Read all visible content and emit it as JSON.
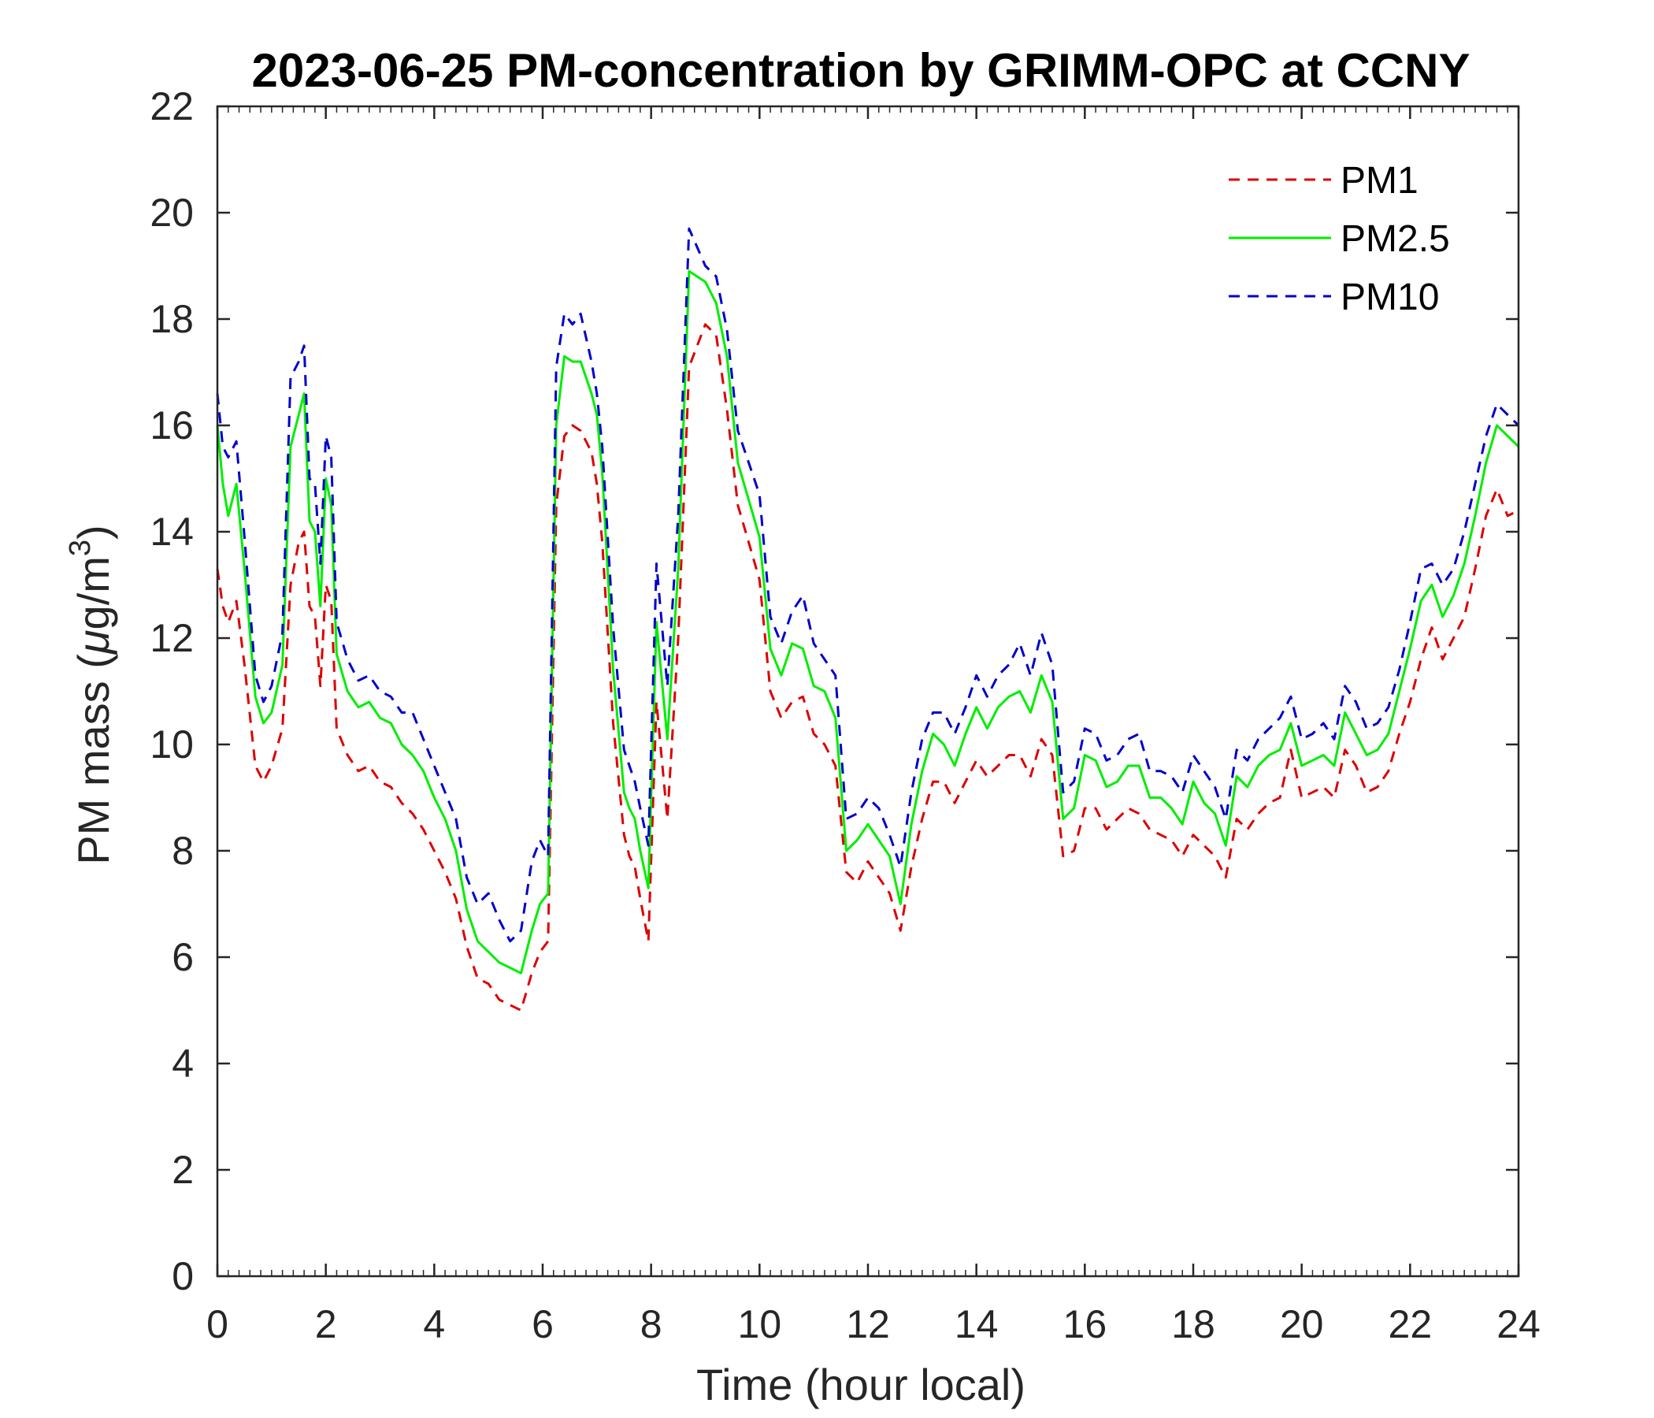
{
  "chart_data": {
    "type": "line",
    "title": "2023-06-25 PM-concentration by GRIMM-OPC at CCNY",
    "xlabel": "Time (hour local)",
    "ylabel_prefix": "PM mass (",
    "ylabel_mu": "μ",
    "ylabel_unit": "g/m",
    "ylabel_sup": "3",
    "ylabel_suffix": ")",
    "xlim": [
      0,
      24
    ],
    "ylim": [
      0,
      22
    ],
    "xticks": [
      0,
      2,
      4,
      6,
      8,
      10,
      12,
      14,
      16,
      18,
      20,
      22,
      24
    ],
    "yticks": [
      0,
      2,
      4,
      6,
      8,
      10,
      12,
      14,
      16,
      18,
      20,
      22
    ],
    "grid": false,
    "legend_position": "top-right",
    "series": [
      {
        "name": "PM1",
        "color": "#dd0000",
        "dash": "dashed",
        "x": [
          0,
          0.1,
          0.2,
          0.35,
          0.5,
          0.7,
          0.85,
          1.0,
          1.2,
          1.35,
          1.5,
          1.6,
          1.7,
          1.8,
          1.9,
          2.0,
          2.1,
          2.2,
          2.4,
          2.6,
          2.8,
          3.0,
          3.2,
          3.4,
          3.6,
          3.8,
          4.0,
          4.2,
          4.4,
          4.6,
          4.8,
          5.0,
          5.2,
          5.4,
          5.6,
          5.8,
          5.95,
          6.1,
          6.25,
          6.4,
          6.55,
          6.7,
          6.9,
          7.0,
          7.1,
          7.3,
          7.5,
          7.6,
          7.7,
          7.8,
          7.95,
          8.1,
          8.3,
          8.5,
          8.7,
          9.0,
          9.2,
          9.4,
          9.6,
          9.8,
          10.0,
          10.2,
          10.4,
          10.6,
          10.8,
          11.0,
          11.2,
          11.4,
          11.6,
          11.8,
          12.0,
          12.2,
          12.4,
          12.6,
          12.8,
          13.0,
          13.2,
          13.4,
          13.6,
          13.8,
          14.0,
          14.2,
          14.4,
          14.6,
          14.8,
          15.0,
          15.2,
          15.4,
          15.6,
          15.8,
          16.0,
          16.2,
          16.4,
          16.6,
          16.8,
          17.0,
          17.2,
          17.4,
          17.6,
          17.8,
          18.0,
          18.2,
          18.4,
          18.6,
          18.8,
          19.0,
          19.2,
          19.4,
          19.6,
          19.8,
          20.0,
          20.2,
          20.4,
          20.6,
          20.8,
          21.0,
          21.2,
          21.4,
          21.6,
          21.8,
          22.0,
          22.2,
          22.4,
          22.6,
          22.8,
          23.0,
          23.2,
          23.4,
          23.6,
          23.8,
          24.0
        ],
        "y": [
          13.3,
          12.6,
          12.3,
          12.7,
          11.5,
          9.6,
          9.3,
          9.6,
          10.3,
          13.0,
          13.8,
          14.0,
          12.6,
          12.4,
          11.1,
          13.0,
          12.7,
          10.3,
          9.8,
          9.5,
          9.6,
          9.3,
          9.2,
          8.9,
          8.7,
          8.4,
          8.0,
          7.6,
          7.1,
          6.2,
          5.6,
          5.5,
          5.2,
          5.1,
          5.0,
          5.7,
          6.1,
          6.3,
          14.5,
          15.8,
          16.0,
          15.9,
          15.5,
          14.9,
          13.8,
          10.4,
          8.3,
          7.9,
          7.7,
          7.1,
          6.3,
          10.8,
          8.6,
          12.0,
          17.1,
          17.9,
          17.7,
          16.3,
          14.5,
          13.8,
          13.1,
          11.0,
          10.5,
          10.8,
          10.9,
          10.2,
          10.0,
          9.6,
          7.6,
          7.4,
          7.8,
          7.5,
          7.2,
          6.5,
          7.7,
          8.6,
          9.3,
          9.3,
          8.9,
          9.3,
          9.7,
          9.4,
          9.6,
          9.8,
          9.8,
          9.4,
          10.1,
          9.8,
          7.9,
          8.0,
          8.8,
          8.8,
          8.4,
          8.6,
          8.8,
          8.7,
          8.4,
          8.3,
          8.2,
          7.9,
          8.3,
          8.1,
          7.9,
          7.5,
          8.6,
          8.4,
          8.7,
          8.9,
          9.0,
          9.9,
          9.0,
          9.1,
          9.2,
          9.0,
          9.9,
          9.6,
          9.1,
          9.2,
          9.5,
          10.2,
          10.8,
          11.6,
          12.2,
          11.6,
          12.0,
          12.4,
          13.3,
          14.3,
          14.8,
          14.3,
          14.4
        ]
      },
      {
        "name": "PM2.5",
        "color": "#00ee00",
        "dash": "solid",
        "x": [
          0,
          0.1,
          0.2,
          0.35,
          0.5,
          0.7,
          0.85,
          1.0,
          1.2,
          1.35,
          1.5,
          1.6,
          1.7,
          1.8,
          1.9,
          2.0,
          2.1,
          2.2,
          2.4,
          2.6,
          2.8,
          3.0,
          3.2,
          3.4,
          3.6,
          3.8,
          4.0,
          4.2,
          4.4,
          4.6,
          4.8,
          5.0,
          5.2,
          5.4,
          5.6,
          5.8,
          5.95,
          6.1,
          6.25,
          6.4,
          6.55,
          6.7,
          6.9,
          7.0,
          7.1,
          7.3,
          7.5,
          7.6,
          7.7,
          7.8,
          7.95,
          8.1,
          8.3,
          8.5,
          8.7,
          9.0,
          9.2,
          9.4,
          9.6,
          9.8,
          10.0,
          10.2,
          10.4,
          10.6,
          10.8,
          11.0,
          11.2,
          11.4,
          11.6,
          11.8,
          12.0,
          12.2,
          12.4,
          12.6,
          12.8,
          13.0,
          13.2,
          13.4,
          13.6,
          13.8,
          14.0,
          14.2,
          14.4,
          14.6,
          14.8,
          15.0,
          15.2,
          15.4,
          15.6,
          15.8,
          16.0,
          16.2,
          16.4,
          16.6,
          16.8,
          17.0,
          17.2,
          17.4,
          17.6,
          17.8,
          18.0,
          18.2,
          18.4,
          18.6,
          18.8,
          19.0,
          19.2,
          19.4,
          19.6,
          19.8,
          20.0,
          20.2,
          20.4,
          20.6,
          20.8,
          21.0,
          21.2,
          21.4,
          21.6,
          21.8,
          22.0,
          22.2,
          22.4,
          22.6,
          22.8,
          23.0,
          23.2,
          23.4,
          23.6,
          23.8,
          24.0
        ],
        "y": [
          16.0,
          14.9,
          14.3,
          14.9,
          13.3,
          10.9,
          10.4,
          10.6,
          11.5,
          15.6,
          16.2,
          16.6,
          14.2,
          14.0,
          12.6,
          15.0,
          14.5,
          11.7,
          11.0,
          10.7,
          10.8,
          10.5,
          10.4,
          10.0,
          9.8,
          9.5,
          9.0,
          8.6,
          8.0,
          6.9,
          6.3,
          6.1,
          5.9,
          5.8,
          5.7,
          6.5,
          7.0,
          7.2,
          16.0,
          17.3,
          17.2,
          17.2,
          16.6,
          16.2,
          15.1,
          11.4,
          9.1,
          8.8,
          8.6,
          8.0,
          7.3,
          12.3,
          10.1,
          13.3,
          18.9,
          18.7,
          18.3,
          17.3,
          15.3,
          14.6,
          13.9,
          11.8,
          11.3,
          11.9,
          11.8,
          11.1,
          11.0,
          10.5,
          8.0,
          8.2,
          8.5,
          8.2,
          7.9,
          7.0,
          8.5,
          9.5,
          10.2,
          10.0,
          9.6,
          10.2,
          10.7,
          10.3,
          10.7,
          10.9,
          11.0,
          10.6,
          11.3,
          10.8,
          8.6,
          8.8,
          9.8,
          9.7,
          9.2,
          9.3,
          9.6,
          9.6,
          9.0,
          9.0,
          8.8,
          8.5,
          9.3,
          8.9,
          8.7,
          8.1,
          9.4,
          9.2,
          9.6,
          9.8,
          9.9,
          10.4,
          9.6,
          9.7,
          9.8,
          9.6,
          10.6,
          10.2,
          9.8,
          9.9,
          10.2,
          11.0,
          11.8,
          12.7,
          13.0,
          12.4,
          12.8,
          13.4,
          14.3,
          15.3,
          16.0,
          15.8,
          15.6
        ]
      },
      {
        "name": "PM10",
        "color": "#0000cc",
        "dash": "dashed",
        "x": [
          0,
          0.1,
          0.2,
          0.35,
          0.5,
          0.7,
          0.85,
          1.0,
          1.2,
          1.35,
          1.5,
          1.6,
          1.7,
          1.8,
          1.9,
          2.0,
          2.1,
          2.2,
          2.4,
          2.6,
          2.8,
          3.0,
          3.2,
          3.4,
          3.6,
          3.8,
          4.0,
          4.2,
          4.4,
          4.6,
          4.8,
          5.0,
          5.2,
          5.4,
          5.6,
          5.8,
          5.95,
          6.1,
          6.25,
          6.4,
          6.55,
          6.7,
          6.9,
          7.0,
          7.1,
          7.3,
          7.5,
          7.6,
          7.7,
          7.8,
          7.95,
          8.1,
          8.3,
          8.5,
          8.7,
          9.0,
          9.2,
          9.4,
          9.6,
          9.8,
          10.0,
          10.2,
          10.4,
          10.6,
          10.8,
          11.0,
          11.2,
          11.4,
          11.6,
          11.8,
          12.0,
          12.2,
          12.4,
          12.6,
          12.8,
          13.0,
          13.2,
          13.4,
          13.6,
          13.8,
          14.0,
          14.2,
          14.4,
          14.6,
          14.8,
          15.0,
          15.2,
          15.4,
          15.6,
          15.8,
          16.0,
          16.2,
          16.4,
          16.6,
          16.8,
          17.0,
          17.2,
          17.4,
          17.6,
          17.8,
          18.0,
          18.2,
          18.4,
          18.6,
          18.8,
          19.0,
          19.2,
          19.4,
          19.6,
          19.8,
          20.0,
          20.2,
          20.4,
          20.6,
          20.8,
          21.0,
          21.2,
          21.4,
          21.6,
          21.8,
          22.0,
          22.2,
          22.4,
          22.6,
          22.8,
          23.0,
          23.2,
          23.4,
          23.6,
          23.8,
          24.0
        ],
        "y": [
          16.6,
          15.6,
          15.4,
          15.7,
          13.9,
          11.3,
          10.8,
          11.1,
          12.1,
          16.9,
          17.2,
          17.5,
          15.0,
          14.9,
          13.4,
          15.8,
          15.4,
          12.3,
          11.6,
          11.2,
          11.3,
          11.0,
          10.9,
          10.6,
          10.6,
          10.1,
          9.6,
          9.1,
          8.6,
          7.5,
          7.0,
          7.2,
          6.7,
          6.3,
          6.5,
          7.8,
          8.2,
          7.9,
          17.1,
          18.1,
          17.9,
          18.1,
          17.2,
          16.6,
          15.6,
          12.2,
          9.9,
          9.6,
          9.3,
          8.8,
          8.1,
          13.4,
          11.1,
          14.3,
          19.7,
          19.0,
          18.8,
          17.8,
          15.9,
          15.3,
          14.7,
          12.4,
          11.9,
          12.5,
          12.8,
          11.9,
          11.6,
          11.3,
          8.6,
          8.7,
          9.0,
          8.8,
          8.3,
          7.7,
          9.1,
          10.1,
          10.6,
          10.6,
          10.2,
          10.7,
          11.3,
          10.9,
          11.3,
          11.5,
          11.9,
          11.3,
          12.1,
          11.5,
          9.1,
          9.3,
          10.3,
          10.2,
          9.7,
          9.8,
          10.1,
          10.2,
          9.5,
          9.5,
          9.4,
          9.1,
          9.8,
          9.5,
          9.2,
          8.6,
          9.9,
          9.7,
          10.1,
          10.3,
          10.5,
          10.9,
          10.1,
          10.2,
          10.4,
          10.1,
          11.1,
          10.8,
          10.3,
          10.4,
          10.7,
          11.4,
          12.3,
          13.3,
          13.4,
          13.0,
          13.3,
          14.0,
          14.9,
          15.8,
          16.4,
          16.2,
          16.0
        ]
      }
    ]
  }
}
